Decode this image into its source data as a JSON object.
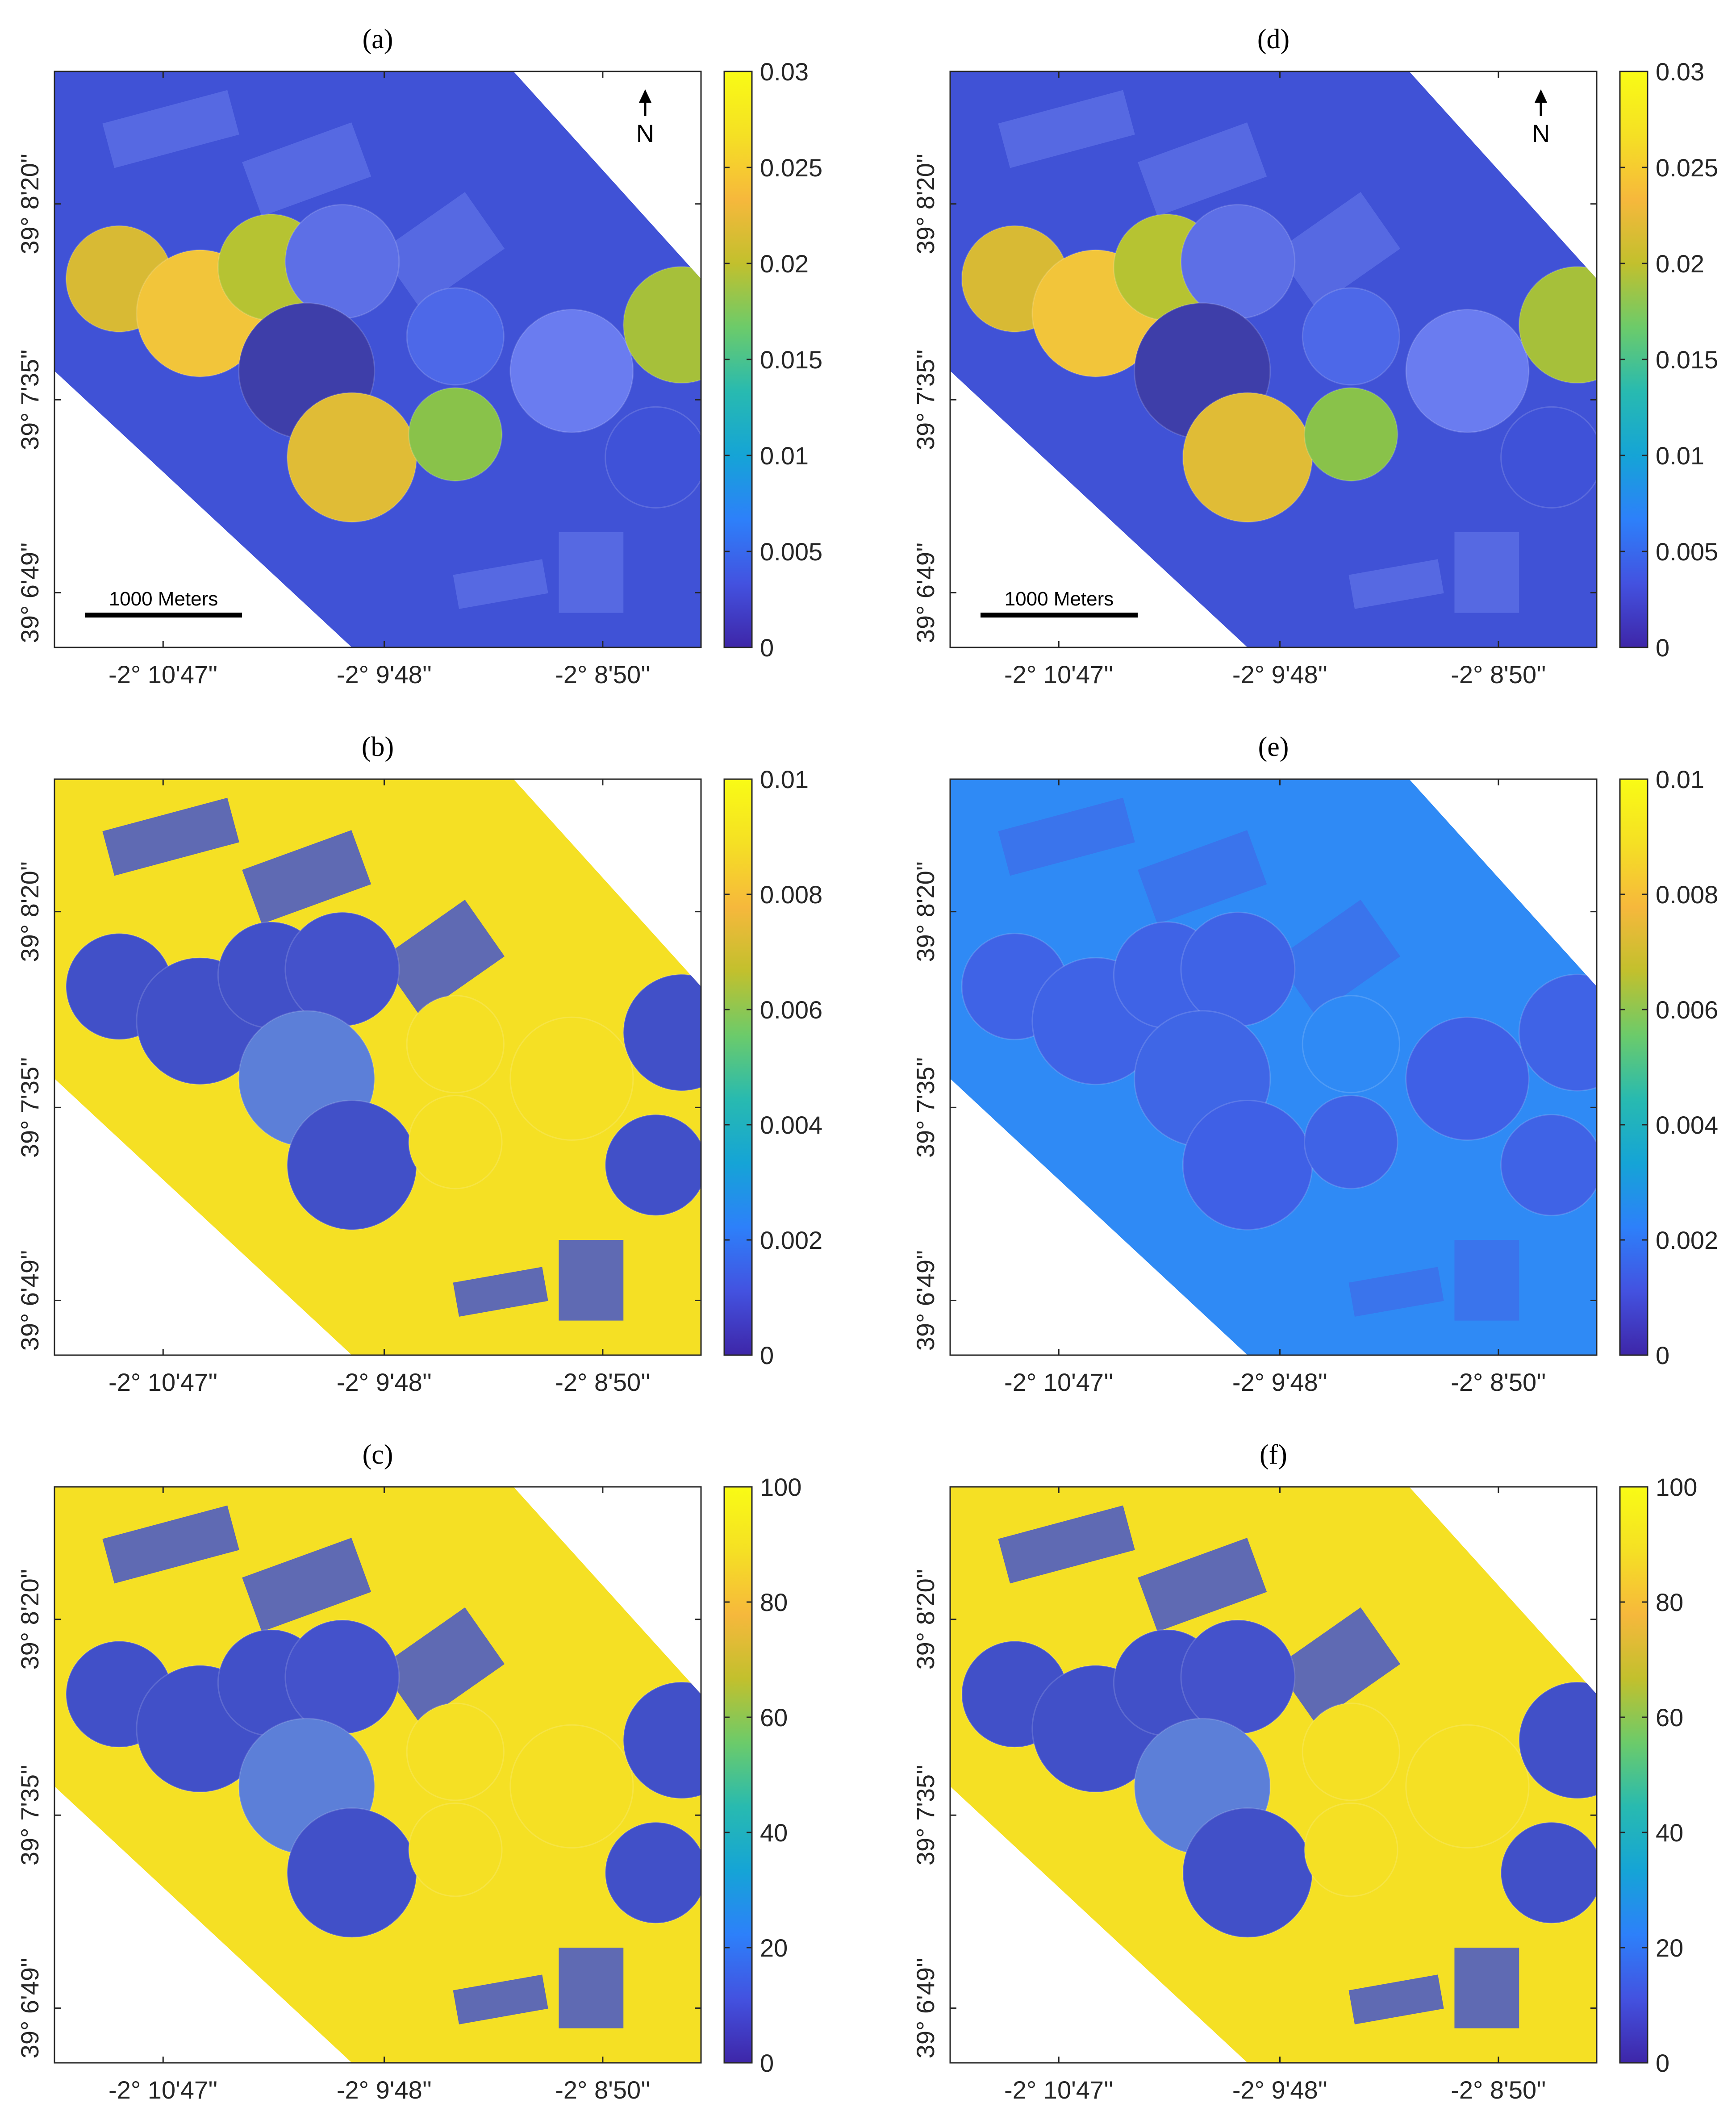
{
  "figure": {
    "panels": [
      {
        "id": "a",
        "title": "(a)",
        "column": 0,
        "row": 0,
        "colorbar": {
          "ticks": [
            "0",
            "0.005",
            "0.01",
            "0.015",
            "0.02",
            "0.025",
            "0.03"
          ],
          "min": 0,
          "max": 0.03
        },
        "north_arrow": "N",
        "scalebar": "1000 Meters",
        "theme": "low"
      },
      {
        "id": "b",
        "title": "(b)",
        "column": 0,
        "row": 1,
        "colorbar": {
          "ticks": [
            "0",
            "0.002",
            "0.004",
            "0.006",
            "0.008",
            "0.01"
          ],
          "min": 0,
          "max": 0.01
        },
        "theme": "high"
      },
      {
        "id": "c",
        "title": "(c)",
        "column": 0,
        "row": 2,
        "colorbar": {
          "ticks": [
            "0",
            "20",
            "40",
            "60",
            "80",
            "100"
          ],
          "min": 0,
          "max": 100
        },
        "theme": "high"
      },
      {
        "id": "d",
        "title": "(d)",
        "column": 1,
        "row": 0,
        "colorbar": {
          "ticks": [
            "0",
            "0.005",
            "0.01",
            "0.015",
            "0.02",
            "0.025",
            "0.03"
          ],
          "min": 0,
          "max": 0.03
        },
        "north_arrow": "N",
        "scalebar": "1000 Meters",
        "theme": "low"
      },
      {
        "id": "e",
        "title": "(e)",
        "column": 1,
        "row": 1,
        "colorbar": {
          "ticks": [
            "0",
            "0.002",
            "0.004",
            "0.006",
            "0.008",
            "0.01"
          ],
          "min": 0,
          "max": 0.01
        },
        "theme": "mid"
      },
      {
        "id": "f",
        "title": "(f)",
        "column": 1,
        "row": 2,
        "colorbar": {
          "ticks": [
            "0",
            "20",
            "40",
            "60",
            "80",
            "100"
          ],
          "min": 0,
          "max": 100
        },
        "theme": "high"
      }
    ],
    "x_ticks": [
      "-2° 10'47''",
      "-2° 9'48''",
      "-2° 8'50''"
    ],
    "y_ticks": [
      "39° 8'20''",
      "39° 7'35''",
      "39° 6'49''"
    ],
    "colormap": [
      "#3e26a8",
      "#4352e0",
      "#2d80fa",
      "#15a4d6",
      "#28bab0",
      "#6ccb6a",
      "#c2c02d",
      "#f6b83c",
      "#f5e024",
      "#f9fb15"
    ]
  }
}
